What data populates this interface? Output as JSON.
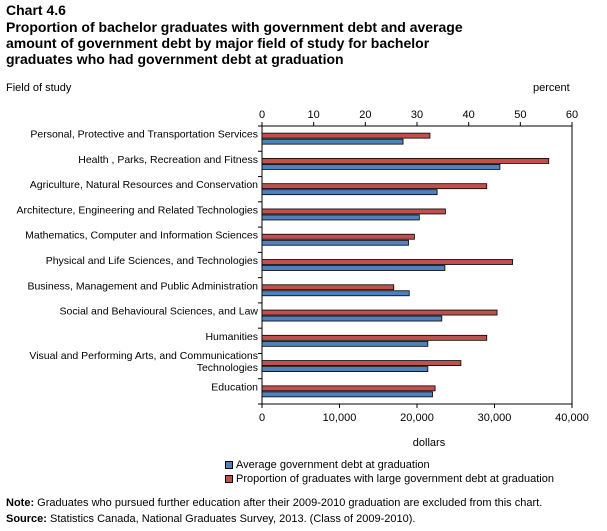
{
  "chart_number": "Chart 4.6",
  "chart_data": {
    "type": "bar",
    "orientation": "horizontal",
    "title": "Proportion of bachelor graduates with government debt and average amount of government debt by major field of study for bachelor graduates who had government debt at graduation",
    "y_axis_label": "Field of study",
    "top_axis": {
      "label": "percent",
      "range": [
        0,
        60
      ],
      "ticks": [
        "0",
        "10",
        "20",
        "30",
        "40",
        "50",
        "60"
      ]
    },
    "bottom_axis": {
      "label": "dollars",
      "range": [
        0,
        40000
      ],
      "ticks": [
        "0",
        "10,000",
        "20,000",
        "30,000",
        "40,000"
      ]
    },
    "categories": [
      "Personal, Protective and Transportation Services",
      "Health , Parks, Recreation and Fitness",
      "Agriculture, Natural Resources and Conservation",
      "Architecture, Engineering and Related Technologies",
      "Mathematics, Computer and Information Sciences",
      "Physical and Life Sciences, and Technologies",
      "Business, Management and Public Administration",
      "Social and Behavioural Sciences, and Law",
      "Humanities",
      "Visual and Performing Arts, and Communications Technologies",
      "Education"
    ],
    "series": [
      {
        "name": "Proportion of graduates with large government debt at graduation",
        "axis": "percent",
        "color": "#c0504d",
        "values": [
          32.5,
          55.5,
          43.5,
          35.5,
          29.5,
          48.5,
          25.5,
          45.5,
          43.5,
          38.5,
          33.5
        ]
      },
      {
        "name": "Average government debt at graduation",
        "axis": "dollars",
        "color": "#4f81bd",
        "values": [
          18200,
          30700,
          22600,
          20300,
          18900,
          23600,
          19000,
          23200,
          21400,
          21400,
          22000
        ]
      }
    ],
    "legend": "bottom",
    "grid": false
  },
  "legend": [
    {
      "label": "Average government debt at graduation",
      "color": "#4f81bd"
    },
    {
      "label": "Proportion of graduates with large government debt at graduation",
      "color": "#c0504d"
    }
  ],
  "note": {
    "label": "Note:",
    "text": " Graduates who pursued further education after their 2009-2010  graduation are excluded from this chart."
  },
  "source": {
    "label": "Source:",
    "text": " Statistics Canada, National Graduates Survey, 2013.  (Class of 2009-2010)."
  }
}
